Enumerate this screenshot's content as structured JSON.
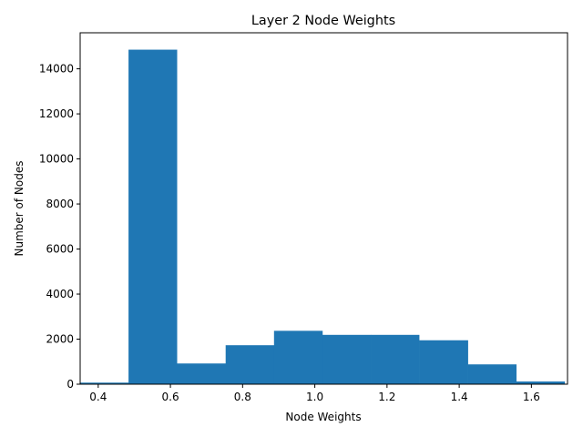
{
  "chart_data": {
    "type": "bar",
    "title": "Layer 2 Node Weights",
    "xlabel": "Node Weights",
    "ylabel": "Number of Nodes",
    "bar_color": "#1f77b4",
    "xlim": [
      0.35,
      1.7
    ],
    "ylim": [
      0,
      15600
    ],
    "x_ticks": [
      0.4,
      0.6,
      0.8,
      1.0,
      1.2,
      1.4,
      1.6
    ],
    "x_tick_labels": [
      "0.4",
      "0.6",
      "0.8",
      "1.0",
      "1.2",
      "1.4",
      "1.6"
    ],
    "y_ticks": [
      0,
      2000,
      4000,
      6000,
      8000,
      10000,
      12000,
      14000
    ],
    "y_tick_labels": [
      "0",
      "2000",
      "4000",
      "6000",
      "8000",
      "10000",
      "12000",
      "14000"
    ],
    "bin_edges": [
      0.35,
      0.484,
      0.618,
      0.753,
      0.887,
      1.021,
      1.155,
      1.289,
      1.424,
      1.558,
      1.692
    ],
    "values": [
      70,
      14850,
      920,
      1730,
      2370,
      2190,
      2190,
      1950,
      880,
      120
    ],
    "grid": false,
    "legend": "none"
  }
}
